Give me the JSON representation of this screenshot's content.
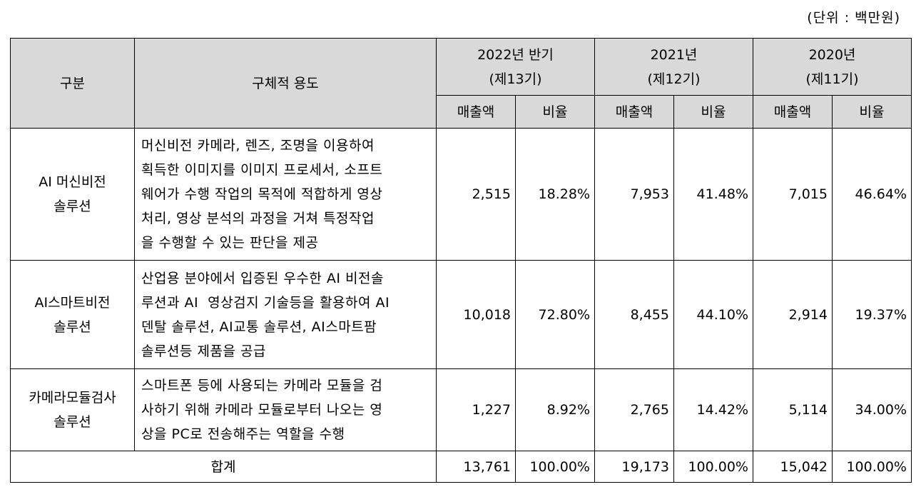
{
  "unit_label": "(단위 : 백만원)",
  "table": {
    "header": {
      "category": "구분",
      "usage": "구체적 용도",
      "periods": [
        {
          "year": "2022년 반기",
          "term": "(제13기)"
        },
        {
          "year": "2021년",
          "term": "(제12기)"
        },
        {
          "year": "2020년",
          "term": "(제11기)"
        }
      ],
      "sales": "매출액",
      "ratio": "비율"
    },
    "rows": [
      {
        "category": [
          "AI 머신비전",
          "솔루션"
        ],
        "usage": [
          "머신비전 카메라, 렌즈, 조명을 이용하여",
          "획득한 이미지를 이미지 프로세서, 소프트",
          "웨어가 수행 작업의 목적에 적합하게 영상",
          "처리, 영상 분석의 과정을 거쳐 특정작업",
          "을 수행할 수 있는 판단을 제공"
        ],
        "values": [
          {
            "sales": "2,515",
            "ratio": "18.28%"
          },
          {
            "sales": "7,953",
            "ratio": "41.48%"
          },
          {
            "sales": "7,015",
            "ratio": "46.64%"
          }
        ]
      },
      {
        "category": [
          "AI스마트비전",
          "솔루션"
        ],
        "usage": [
          "산업용 분야에서 입증된 우수한 AI 비전솔",
          "루션과 AI  영상검지 기술등을 활용하여 AI",
          "덴탈 솔루션, AI교통 솔루션, AI스마트팜",
          "솔루션등 제품을 공급"
        ],
        "values": [
          {
            "sales": "10,018",
            "ratio": "72.80%"
          },
          {
            "sales": "8,455",
            "ratio": "44.10%"
          },
          {
            "sales": "2,914",
            "ratio": "19.37%"
          }
        ]
      },
      {
        "category": [
          "카메라모듈검사",
          "솔루션"
        ],
        "usage": [
          "스마트폰 등에 사용되는 카메라 모듈을 검",
          "사하기 위해 카메라 모듈로부터 나오는 영",
          "상을 PC로 전송해주는 역할을 수행"
        ],
        "values": [
          {
            "sales": "1,227",
            "ratio": "8.92%"
          },
          {
            "sales": "2,765",
            "ratio": "14.42%"
          },
          {
            "sales": "5,114",
            "ratio": "34.00%"
          }
        ]
      }
    ],
    "total": {
      "label": "합계",
      "values": [
        {
          "sales": "13,761",
          "ratio": "100.00%"
        },
        {
          "sales": "19,173",
          "ratio": "100.00%"
        },
        {
          "sales": "15,042",
          "ratio": "100.00%"
        }
      ]
    }
  }
}
